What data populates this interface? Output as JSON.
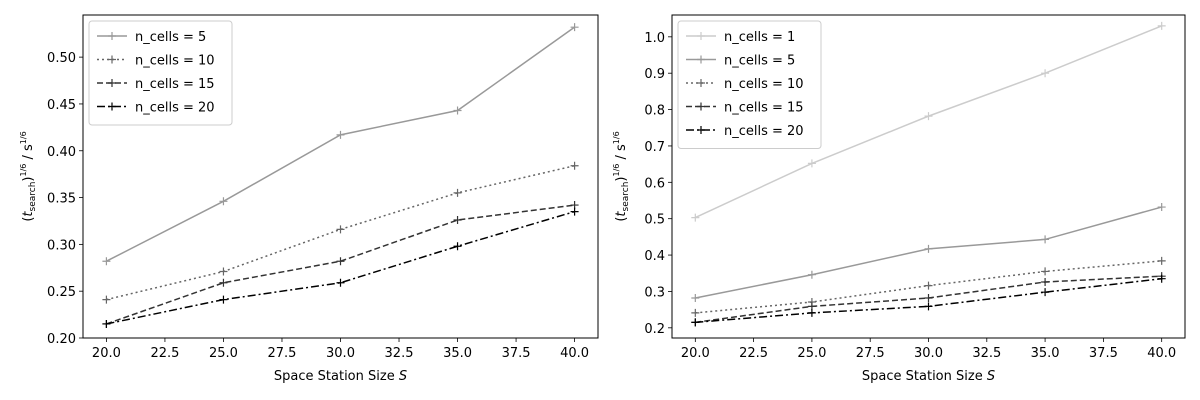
{
  "chart_data": [
    {
      "type": "line",
      "xlabel": "Space Station Size S",
      "ylabel": "(t_search)^(1/6) / s^(1/6)",
      "x": [
        20,
        25,
        30,
        35,
        40
      ],
      "xlim": [
        19.0,
        41.0
      ],
      "ylim": [
        0.2,
        0.545
      ],
      "xticks": [
        "20.0",
        "22.5",
        "25.0",
        "27.5",
        "30.0",
        "32.5",
        "35.0",
        "37.5",
        "40.0"
      ],
      "yticks": [
        "0.20",
        "0.25",
        "0.30",
        "0.35",
        "0.40",
        "0.45",
        "0.50"
      ],
      "legend_position": "top-left",
      "series": [
        {
          "name": "n_cells = 5",
          "values": [
            0.282,
            0.346,
            0.417,
            0.443,
            0.532
          ],
          "color": "#999999",
          "dash": "solid"
        },
        {
          "name": "n_cells = 10",
          "values": [
            0.241,
            0.271,
            0.316,
            0.355,
            0.384
          ],
          "color": "#666666",
          "dash": "dotted"
        },
        {
          "name": "n_cells = 15",
          "values": [
            0.215,
            0.259,
            0.282,
            0.326,
            0.342
          ],
          "color": "#333333",
          "dash": "dashed"
        },
        {
          "name": "n_cells = 20",
          "values": [
            0.215,
            0.241,
            0.259,
            0.298,
            0.335
          ],
          "color": "#000000",
          "dash": "dashdot"
        }
      ]
    },
    {
      "type": "line",
      "xlabel": "Space Station Size S",
      "ylabel": "(t_search)^(1/6) / s^(1/6)",
      "x": [
        20,
        25,
        30,
        35,
        40
      ],
      "xlim": [
        19.0,
        41.0
      ],
      "ylim": [
        0.172,
        1.06
      ],
      "xticks": [
        "20.0",
        "22.5",
        "25.0",
        "27.5",
        "30.0",
        "32.5",
        "35.0",
        "37.5",
        "40.0"
      ],
      "yticks": [
        "0.2",
        "0.3",
        "0.4",
        "0.5",
        "0.6",
        "0.7",
        "0.8",
        "0.9",
        "1.0"
      ],
      "legend_position": "top-left",
      "series": [
        {
          "name": "n_cells = 1",
          "values": [
            0.503,
            0.652,
            0.782,
            0.9,
            1.03
          ],
          "color": "#cccccc",
          "dash": "solid"
        },
        {
          "name": "n_cells = 5",
          "values": [
            0.282,
            0.346,
            0.417,
            0.443,
            0.532
          ],
          "color": "#999999",
          "dash": "solid"
        },
        {
          "name": "n_cells = 10",
          "values": [
            0.241,
            0.271,
            0.316,
            0.355,
            0.384
          ],
          "color": "#666666",
          "dash": "dotted"
        },
        {
          "name": "n_cells = 15",
          "values": [
            0.215,
            0.259,
            0.282,
            0.326,
            0.342
          ],
          "color": "#333333",
          "dash": "dashed"
        },
        {
          "name": "n_cells = 20",
          "values": [
            0.215,
            0.241,
            0.259,
            0.298,
            0.335
          ],
          "color": "#000000",
          "dash": "dashdot"
        }
      ]
    }
  ]
}
